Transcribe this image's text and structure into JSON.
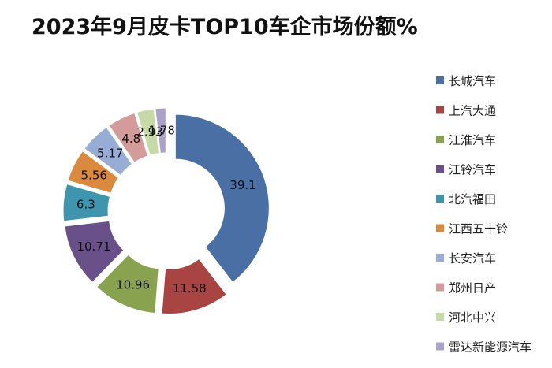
{
  "chart_data": {
    "type": "pie",
    "title": "2023年9月皮卡TOP10车企市场份额%",
    "categories": [
      "长城汽车",
      "上汽大通",
      "江淮汽车",
      "江铃汽车",
      "北汽福田",
      "江西五十铃",
      "长安汽车",
      "郑州日产",
      "河北中兴",
      "雷达新能源汽车"
    ],
    "values": [
      39.1,
      11.58,
      10.96,
      10.71,
      6.3,
      5.56,
      5.17,
      4.8,
      2.93,
      1.78
    ],
    "data_labels": [
      "39.1",
      "11.58",
      "10.96",
      "10.71",
      "6.3",
      "5.56",
      "5.17",
      "4.8",
      "2.93",
      "1.78"
    ],
    "colors": [
      "#4a6fa5",
      "#a84442",
      "#88a24f",
      "#6a5088",
      "#3f95ad",
      "#d98a3f",
      "#97add6",
      "#d39c9a",
      "#c6d9a6",
      "#aaa2c9"
    ],
    "style": "exploded donut",
    "legend_position": "right"
  }
}
